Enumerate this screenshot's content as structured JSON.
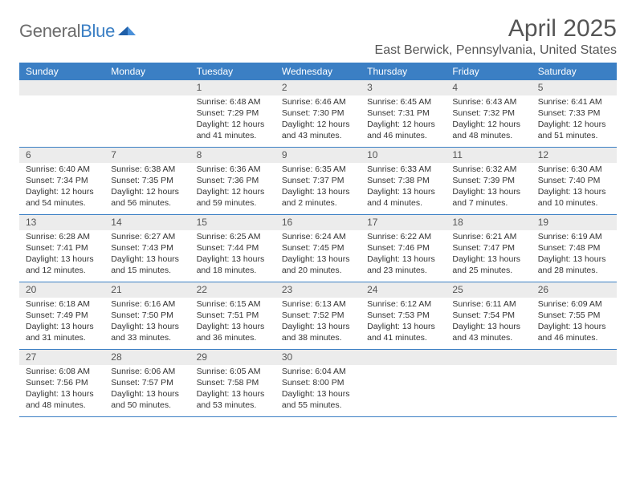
{
  "logo": {
    "word1": "General",
    "word2": "Blue"
  },
  "title": "April 2025",
  "location": "East Berwick, Pennsylvania, United States",
  "colors": {
    "header_bg": "#3b7fc4",
    "header_text": "#ffffff",
    "daynum_bg": "#ececec",
    "text": "#333333",
    "muted": "#555555",
    "row_border": "#3b7fc4"
  },
  "columns": [
    "Sunday",
    "Monday",
    "Tuesday",
    "Wednesday",
    "Thursday",
    "Friday",
    "Saturday"
  ],
  "layout": {
    "first_weekday_index": 2,
    "days_in_month": 30
  },
  "days": [
    {
      "n": 1,
      "sunrise": "6:48 AM",
      "sunset": "7:29 PM",
      "daylight": "12 hours and 41 minutes."
    },
    {
      "n": 2,
      "sunrise": "6:46 AM",
      "sunset": "7:30 PM",
      "daylight": "12 hours and 43 minutes."
    },
    {
      "n": 3,
      "sunrise": "6:45 AM",
      "sunset": "7:31 PM",
      "daylight": "12 hours and 46 minutes."
    },
    {
      "n": 4,
      "sunrise": "6:43 AM",
      "sunset": "7:32 PM",
      "daylight": "12 hours and 48 minutes."
    },
    {
      "n": 5,
      "sunrise": "6:41 AM",
      "sunset": "7:33 PM",
      "daylight": "12 hours and 51 minutes."
    },
    {
      "n": 6,
      "sunrise": "6:40 AM",
      "sunset": "7:34 PM",
      "daylight": "12 hours and 54 minutes."
    },
    {
      "n": 7,
      "sunrise": "6:38 AM",
      "sunset": "7:35 PM",
      "daylight": "12 hours and 56 minutes."
    },
    {
      "n": 8,
      "sunrise": "6:36 AM",
      "sunset": "7:36 PM",
      "daylight": "12 hours and 59 minutes."
    },
    {
      "n": 9,
      "sunrise": "6:35 AM",
      "sunset": "7:37 PM",
      "daylight": "13 hours and 2 minutes."
    },
    {
      "n": 10,
      "sunrise": "6:33 AM",
      "sunset": "7:38 PM",
      "daylight": "13 hours and 4 minutes."
    },
    {
      "n": 11,
      "sunrise": "6:32 AM",
      "sunset": "7:39 PM",
      "daylight": "13 hours and 7 minutes."
    },
    {
      "n": 12,
      "sunrise": "6:30 AM",
      "sunset": "7:40 PM",
      "daylight": "13 hours and 10 minutes."
    },
    {
      "n": 13,
      "sunrise": "6:28 AM",
      "sunset": "7:41 PM",
      "daylight": "13 hours and 12 minutes."
    },
    {
      "n": 14,
      "sunrise": "6:27 AM",
      "sunset": "7:43 PM",
      "daylight": "13 hours and 15 minutes."
    },
    {
      "n": 15,
      "sunrise": "6:25 AM",
      "sunset": "7:44 PM",
      "daylight": "13 hours and 18 minutes."
    },
    {
      "n": 16,
      "sunrise": "6:24 AM",
      "sunset": "7:45 PM",
      "daylight": "13 hours and 20 minutes."
    },
    {
      "n": 17,
      "sunrise": "6:22 AM",
      "sunset": "7:46 PM",
      "daylight": "13 hours and 23 minutes."
    },
    {
      "n": 18,
      "sunrise": "6:21 AM",
      "sunset": "7:47 PM",
      "daylight": "13 hours and 25 minutes."
    },
    {
      "n": 19,
      "sunrise": "6:19 AM",
      "sunset": "7:48 PM",
      "daylight": "13 hours and 28 minutes."
    },
    {
      "n": 20,
      "sunrise": "6:18 AM",
      "sunset": "7:49 PM",
      "daylight": "13 hours and 31 minutes."
    },
    {
      "n": 21,
      "sunrise": "6:16 AM",
      "sunset": "7:50 PM",
      "daylight": "13 hours and 33 minutes."
    },
    {
      "n": 22,
      "sunrise": "6:15 AM",
      "sunset": "7:51 PM",
      "daylight": "13 hours and 36 minutes."
    },
    {
      "n": 23,
      "sunrise": "6:13 AM",
      "sunset": "7:52 PM",
      "daylight": "13 hours and 38 minutes."
    },
    {
      "n": 24,
      "sunrise": "6:12 AM",
      "sunset": "7:53 PM",
      "daylight": "13 hours and 41 minutes."
    },
    {
      "n": 25,
      "sunrise": "6:11 AM",
      "sunset": "7:54 PM",
      "daylight": "13 hours and 43 minutes."
    },
    {
      "n": 26,
      "sunrise": "6:09 AM",
      "sunset": "7:55 PM",
      "daylight": "13 hours and 46 minutes."
    },
    {
      "n": 27,
      "sunrise": "6:08 AM",
      "sunset": "7:56 PM",
      "daylight": "13 hours and 48 minutes."
    },
    {
      "n": 28,
      "sunrise": "6:06 AM",
      "sunset": "7:57 PM",
      "daylight": "13 hours and 50 minutes."
    },
    {
      "n": 29,
      "sunrise": "6:05 AM",
      "sunset": "7:58 PM",
      "daylight": "13 hours and 53 minutes."
    },
    {
      "n": 30,
      "sunrise": "6:04 AM",
      "sunset": "8:00 PM",
      "daylight": "13 hours and 55 minutes."
    }
  ],
  "labels": {
    "sunrise": "Sunrise:",
    "sunset": "Sunset:",
    "daylight": "Daylight:"
  }
}
